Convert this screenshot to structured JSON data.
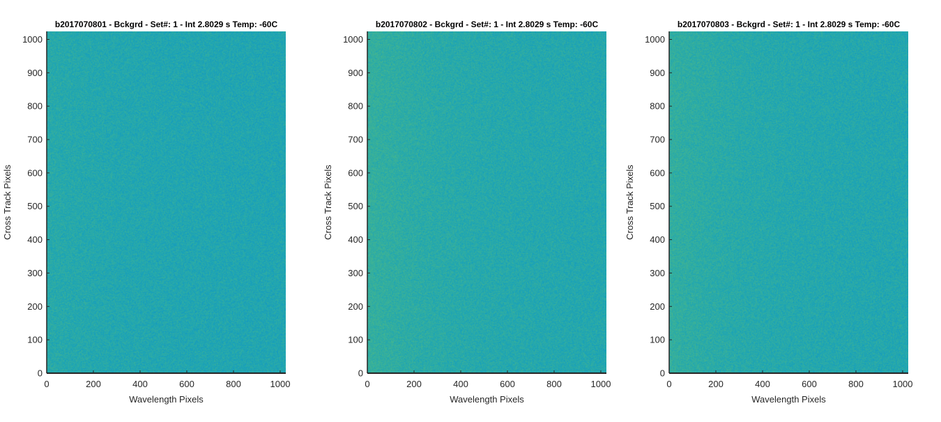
{
  "chart_data": [
    {
      "type": "heatmap",
      "title": "b2017070801 - Bckgrd - Set#: 1 - Int 2.8029 s Temp: -60C",
      "xlabel": "Wavelength Pixels",
      "ylabel": "Cross Track Pixels",
      "xlim": [
        0,
        1024
      ],
      "ylim": [
        0,
        1024
      ],
      "xticks": [
        "0",
        "200",
        "400",
        "600",
        "800",
        "1000"
      ],
      "yticks": [
        "0",
        "100",
        "200",
        "300",
        "400",
        "500",
        "600",
        "700",
        "800",
        "900",
        "1000"
      ],
      "colormap": "parula",
      "texture": "uniform random noise",
      "base_color": "#1aa3b8",
      "warm_color": "#43b590",
      "left_edge_warmth": 0.35,
      "overall_warmth": 0.3,
      "grid": false
    },
    {
      "type": "heatmap",
      "title": "b2017070802 - Bckgrd - Set#: 1 - Int 2.8029 s Temp: -60C",
      "xlabel": "Wavelength Pixels",
      "ylabel": "Cross Track Pixels",
      "xlim": [
        0,
        1024
      ],
      "ylim": [
        0,
        1024
      ],
      "xticks": [
        "0",
        "200",
        "400",
        "600",
        "800",
        "1000"
      ],
      "yticks": [
        "0",
        "100",
        "200",
        "300",
        "400",
        "500",
        "600",
        "700",
        "800",
        "900",
        "1000"
      ],
      "colormap": "parula",
      "texture": "uniform random noise",
      "base_color": "#1aa3b8",
      "warm_color": "#43b590",
      "left_edge_warmth": 0.75,
      "overall_warmth": 0.45,
      "grid": false
    },
    {
      "type": "heatmap",
      "title": "b2017070803 - Bckgrd - Set#: 1 - Int 2.8029 s Temp: -60C",
      "xlabel": "Wavelength Pixels",
      "ylabel": "Cross Track Pixels",
      "xlim": [
        0,
        1024
      ],
      "ylim": [
        0,
        1024
      ],
      "xticks": [
        "0",
        "200",
        "400",
        "600",
        "800",
        "1000"
      ],
      "yticks": [
        "0",
        "100",
        "200",
        "300",
        "400",
        "500",
        "600",
        "700",
        "800",
        "900",
        "1000"
      ],
      "colormap": "parula",
      "texture": "uniform random noise",
      "base_color": "#1aa3b8",
      "warm_color": "#43b590",
      "left_edge_warmth": 0.7,
      "overall_warmth": 0.4,
      "grid": false
    }
  ]
}
